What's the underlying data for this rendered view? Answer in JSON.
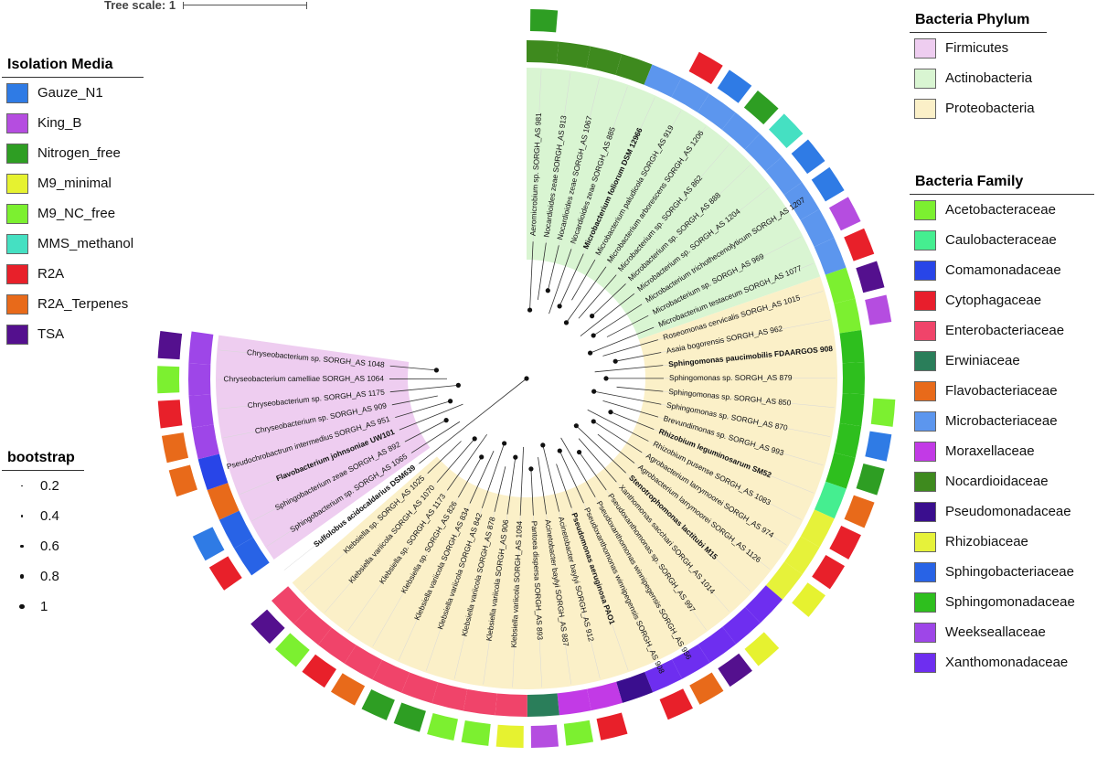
{
  "tree_scale": {
    "label": "Tree scale: 1"
  },
  "isolation_media": {
    "title": "Isolation Media",
    "items": [
      {
        "label": "Gauze_N1",
        "color": "#2F7BE5"
      },
      {
        "label": "King_B",
        "color": "#B54DE0"
      },
      {
        "label": "Nitrogen_free",
        "color": "#2E9E23"
      },
      {
        "label": "M9_minimal",
        "color": "#E6F230"
      },
      {
        "label": "M9_NC_free",
        "color": "#7CF030"
      },
      {
        "label": "MMS_methanol",
        "color": "#45E0C2"
      },
      {
        "label": "R2A",
        "color": "#E8202A"
      },
      {
        "label": "R2A_Terpenes",
        "color": "#E86A1A"
      },
      {
        "label": "TSA",
        "color": "#54108E"
      }
    ]
  },
  "bootstrap": {
    "title": "bootstrap",
    "items": [
      {
        "label": "0.2",
        "value": 0.2
      },
      {
        "label": "0.4",
        "value": 0.4
      },
      {
        "label": "0.6",
        "value": 0.6
      },
      {
        "label": "0.8",
        "value": 0.8
      },
      {
        "label": "1",
        "value": 1
      }
    ]
  },
  "bacteria_phylum": {
    "title": "Bacteria Phylum",
    "items": [
      {
        "label": "Firmicutes",
        "color": "#EECDF0"
      },
      {
        "label": "Actinobacteria",
        "color": "#D9F5D2"
      },
      {
        "label": "Proteobacteria",
        "color": "#FBF0C8"
      }
    ]
  },
  "bacteria_family": {
    "title": "Bacteria Family",
    "items": [
      {
        "label": "Acetobacteraceae",
        "color": "#7CF030"
      },
      {
        "label": "Caulobacteraceae",
        "color": "#45EE90"
      },
      {
        "label": "Comamonadaceae",
        "color": "#2845E8"
      },
      {
        "label": "Cytophagaceae",
        "color": "#E81E2C"
      },
      {
        "label": "Enterobacteriaceae",
        "color": "#F0446A"
      },
      {
        "label": "Erwiniaceae",
        "color": "#2A7E5A"
      },
      {
        "label": "Flavobacteriaceae",
        "color": "#E86A1A"
      },
      {
        "label": "Microbacteriaceae",
        "color": "#5C96EE"
      },
      {
        "label": "Moraxellaceae",
        "color": "#C23AE6"
      },
      {
        "label": "Nocardioidaceae",
        "color": "#3E8A1E"
      },
      {
        "label": "Pseudomonadaceae",
        "color": "#3A0E8E"
      },
      {
        "label": "Rhizobiaceae",
        "color": "#E6F23A"
      },
      {
        "label": "Sphingobacteriaceae",
        "color": "#2863E6"
      },
      {
        "label": "Sphingomonadaceae",
        "color": "#2EBF1E"
      },
      {
        "label": "Weekseallaceae",
        "color": "#9E46E8"
      },
      {
        "label": "Xanthomonadaceae",
        "color": "#6E2EF0"
      }
    ]
  },
  "taxa": [
    {
      "label": "Aeromicrobium sp. SORGH_AS 981",
      "phylum": 1,
      "family": 9,
      "media": 2,
      "bold": false
    },
    {
      "label": "Nocardioides zeae SORGH_AS 913",
      "phylum": 1,
      "family": 9,
      "media": null,
      "bold": false
    },
    {
      "label": "Nocardioides zeae SORGH_AS 1067",
      "phylum": 1,
      "family": 9,
      "media": null,
      "bold": false
    },
    {
      "label": "Nocardioides zeae SORGH_AS 885",
      "phylum": 1,
      "family": 9,
      "media": null,
      "bold": false
    },
    {
      "label": "Microbacterium foliorum DSM 12966",
      "phylum": 1,
      "family": 7,
      "media": null,
      "bold": true
    },
    {
      "label": "Microbacterium paludicola SORGH_AS 919",
      "phylum": 1,
      "family": 7,
      "media": 6,
      "bold": false
    },
    {
      "label": "Microbacterium arborescens SORGH_AS 1206",
      "phylum": 1,
      "family": 7,
      "media": 0,
      "bold": false
    },
    {
      "label": "Microbacterium sp. SORGH_AS 862",
      "phylum": 1,
      "family": 7,
      "media": 2,
      "bold": false
    },
    {
      "label": "Microbacterium sp. SORGH_AS 888",
      "phylum": 1,
      "family": 7,
      "media": 5,
      "bold": false
    },
    {
      "label": "Microbacterium sp. SORGH_AS 1204",
      "phylum": 1,
      "family": 7,
      "media": 0,
      "bold": false
    },
    {
      "label": "Microbacterium trichothecenolyticum SORGH_AS 1207",
      "phylum": 1,
      "family": 7,
      "media": 0,
      "bold": false
    },
    {
      "label": "Microbacterium sp. SORGH_AS 969",
      "phylum": 1,
      "family": 7,
      "media": 1,
      "bold": false
    },
    {
      "label": "Microbacterium testaceum SORGH_AS 1077",
      "phylum": 1,
      "family": 7,
      "media": 6,
      "bold": false
    },
    {
      "label": "Roseomonas cervicalis SORGH_AS 1015",
      "phylum": 2,
      "family": 0,
      "media": 8,
      "bold": false
    },
    {
      "label": "Asaia bogorensis SORGH_AS 962",
      "phylum": 2,
      "family": 0,
      "media": 1,
      "bold": false
    },
    {
      "label": "Sphingomonas paucimobilis FDAARGOS 908",
      "phylum": 2,
      "family": 13,
      "media": null,
      "bold": true
    },
    {
      "label": "Sphingomonas sp. SORGH_AS 879",
      "phylum": 2,
      "family": 13,
      "media": null,
      "bold": false
    },
    {
      "label": "Sphingomonas sp. SORGH_AS 850",
      "phylum": 2,
      "family": 13,
      "media": 4,
      "bold": false
    },
    {
      "label": "Sphingomonas sp. SORGH_AS 870",
      "phylum": 2,
      "family": 13,
      "media": 0,
      "bold": false
    },
    {
      "label": "Brevundimonas sp. SORGH_AS 993",
      "phylum": 2,
      "family": 13,
      "media": 2,
      "bold": false
    },
    {
      "label": "Rhizobium leguminosarum SM52",
      "phylum": 2,
      "family": 1,
      "media": 7,
      "bold": true
    },
    {
      "label": "Rhizobium pusense SORGH_AS 1083",
      "phylum": 2,
      "family": 11,
      "media": 6,
      "bold": false
    },
    {
      "label": "Agrobacterium larrymoorei SORGH_AS 974",
      "phylum": 2,
      "family": 11,
      "media": 6,
      "bold": false
    },
    {
      "label": "Agrobacterium larrymoorei SORGH_AS 1126",
      "phylum": 2,
      "family": 11,
      "media": 3,
      "bold": false
    },
    {
      "label": "Stenotrophomonas lactitubi M15",
      "phylum": 2,
      "family": 15,
      "media": null,
      "bold": true
    },
    {
      "label": "Xanthomonas sacchari SORGH_AS 1014",
      "phylum": 2,
      "family": 15,
      "media": 3,
      "bold": false
    },
    {
      "label": "Pseudoxanthomonas sp. SORGH_AS 997",
      "phylum": 2,
      "family": 15,
      "media": 8,
      "bold": false
    },
    {
      "label": "Pseudoxanthomonas winnipegensis SORGH_AS 956",
      "phylum": 2,
      "family": 15,
      "media": 7,
      "bold": false
    },
    {
      "label": "Pseudoxanthomonas winnipegensis SORGH_AS 908",
      "phylum": 2,
      "family": 15,
      "media": 6,
      "bold": false
    },
    {
      "label": "Pseudomonas aeruginosa PAO1",
      "phylum": 2,
      "family": 10,
      "media": null,
      "bold": true
    },
    {
      "label": "Acinetobacter baylyi SORGH_AS 912",
      "phylum": 2,
      "family": 8,
      "media": 6,
      "bold": false
    },
    {
      "label": "Acinetobacter baylyi SORGH_AS 887",
      "phylum": 2,
      "family": 8,
      "media": 4,
      "bold": false
    },
    {
      "label": "Pantoea dispersa SORGH_AS 893",
      "phylum": 2,
      "family": 5,
      "media": 1,
      "bold": false
    },
    {
      "label": "Klebsiella variicola SORGH_AS 1094",
      "phylum": 2,
      "family": 4,
      "media": 3,
      "bold": false
    },
    {
      "label": "Klebsiella variicola SORGH_AS 906",
      "phylum": 2,
      "family": 4,
      "media": 4,
      "bold": false
    },
    {
      "label": "Klebsiella variicola SORGH_AS 878",
      "phylum": 2,
      "family": 4,
      "media": 4,
      "bold": false
    },
    {
      "label": "Klebsiella variicola SORGH_AS 842",
      "phylum": 2,
      "family": 4,
      "media": 2,
      "bold": false
    },
    {
      "label": "Klebsiella variicola SORGH_AS 834",
      "phylum": 2,
      "family": 4,
      "media": 2,
      "bold": false
    },
    {
      "label": "Klebsiella sp. SORGH_AS 826",
      "phylum": 2,
      "family": 4,
      "media": 7,
      "bold": false
    },
    {
      "label": "Klebsiella sp. SORGH_AS 1173",
      "phylum": 2,
      "family": 4,
      "media": 6,
      "bold": false
    },
    {
      "label": "Klebsiella variicola SORGH_AS 1070",
      "phylum": 2,
      "family": 4,
      "media": 4,
      "bold": false
    },
    {
      "label": "Klebsiella sp. SORGH_AS 1025",
      "phylum": 2,
      "family": 4,
      "media": 8,
      "bold": false
    },
    {
      "label": "Sulfolobus acidocaldarius DSM639",
      "phylum": null,
      "family": null,
      "media": null,
      "bold": true
    },
    {
      "label": "Sphingobacterium sp. SORGH_AS 1065",
      "phylum": 0,
      "family": 12,
      "media": 6,
      "bold": false
    },
    {
      "label": "Sphingobacterium zeae SORGH_AS 892",
      "phylum": 0,
      "family": 12,
      "media": 0,
      "bold": false
    },
    {
      "label": "Flavobacterium johnsoniae UW101",
      "phylum": 0,
      "family": 6,
      "media": null,
      "bold": true
    },
    {
      "label": "Pseudochrobactrum intermedius SORGH_AS 951",
      "phylum": 0,
      "family": 2,
      "media": 7,
      "bold": false
    },
    {
      "label": "Chryseobacterium sp. SORGH_AS 909",
      "phylum": 0,
      "family": 14,
      "media": 7,
      "bold": false
    },
    {
      "label": "Chryseobacterium sp. SORGH_AS 1175",
      "phylum": 0,
      "family": 14,
      "media": 6,
      "bold": false
    },
    {
      "label": "Chryseobacterium camelliae SORGH_AS 1064",
      "phylum": 0,
      "family": 14,
      "media": 4,
      "bold": false
    },
    {
      "label": "Chryseobacterium sp. SORGH_AS 1048",
      "phylum": 0,
      "family": 14,
      "media": 8,
      "bold": false
    }
  ]
}
